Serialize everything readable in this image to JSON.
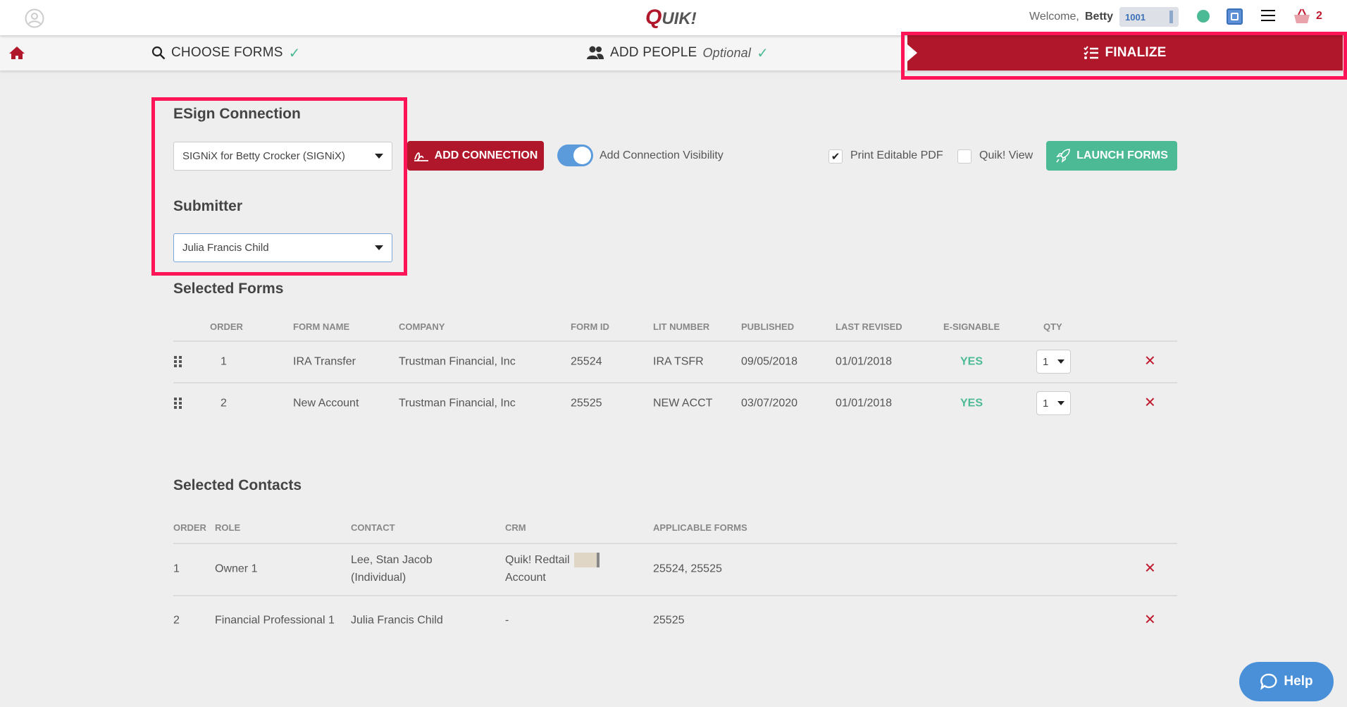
{
  "header": {
    "logo": "QUIK!",
    "welcome": "Welcome,",
    "user": "Betty",
    "account": "1001",
    "cart_count": "2"
  },
  "nav": {
    "choose_forms": "CHOOSE FORMS",
    "add_people": "ADD PEOPLE",
    "optional": "Optional",
    "finalize": "FINALIZE"
  },
  "esign": {
    "title": "ESign Connection",
    "connection": "SIGNiX for Betty Crocker (SIGNiX)",
    "submitter_title": "Submitter",
    "submitter": "Julia Francis Child"
  },
  "controls": {
    "add_connection": "ADD CONNECTION",
    "visibility": "Add Connection Visibility",
    "visibility_on": true,
    "print_pdf": "Print Editable PDF",
    "print_pdf_checked": true,
    "quik_view": "Quik! View",
    "quik_view_checked": false,
    "launch": "LAUNCH FORMS"
  },
  "forms": {
    "title": "Selected Forms",
    "headers": [
      "ORDER",
      "FORM NAME",
      "COMPANY",
      "FORM ID",
      "LIT NUMBER",
      "PUBLISHED",
      "LAST REVISED",
      "E-SIGNABLE",
      "QTY"
    ],
    "rows": [
      {
        "order": "1",
        "name": "IRA Transfer",
        "company": "Trustman Financial, Inc",
        "form_id": "25524",
        "lit": "IRA TSFR",
        "published": "09/05/2018",
        "revised": "01/01/2018",
        "esign": "YES",
        "qty": "1"
      },
      {
        "order": "2",
        "name": "New Account",
        "company": "Trustman Financial, Inc",
        "form_id": "25525",
        "lit": "NEW ACCT",
        "published": "03/07/2020",
        "revised": "01/01/2018",
        "esign": "YES",
        "qty": "1"
      }
    ]
  },
  "contacts": {
    "title": "Selected Contacts",
    "headers": [
      "ORDER",
      "ROLE",
      "CONTACT",
      "CRM",
      "APPLICABLE FORMS"
    ],
    "rows": [
      {
        "order": "1",
        "role": "Owner 1",
        "contact": "Lee, Stan Jacob (Individual)",
        "crm": "Quik! Redtail Account",
        "forms": "25524, 25525"
      },
      {
        "order": "2",
        "role": "Financial Professional 1",
        "contact": "Julia Francis Child",
        "crm": "-",
        "forms": "25525"
      }
    ]
  },
  "help": "Help",
  "colors": {
    "brand": "#b0172a",
    "accent": "#4dba96",
    "highlight": "#ff1457",
    "help": "#4a90d9"
  }
}
